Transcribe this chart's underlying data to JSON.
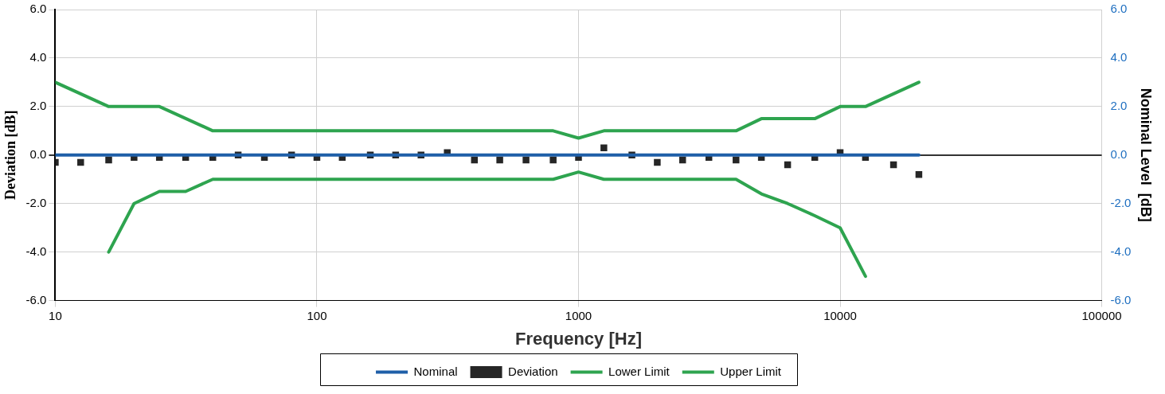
{
  "chart_data": {
    "type": "line",
    "xlabel": "Frequency [Hz]",
    "ylabel": "Deviation [dB]",
    "y2label": "Nominal Level  [dB]",
    "log": "x",
    "grid": true,
    "legend": "bottom",
    "xlim": [
      10,
      100000
    ],
    "xticks": [
      10,
      100,
      1000,
      10000,
      100000
    ],
    "ylim": [
      -6,
      6
    ],
    "yticks": [
      {
        "value": -6,
        "label": "-6.0"
      },
      {
        "value": -4,
        "label": "-4.0"
      },
      {
        "value": -2,
        "label": "-2.0"
      },
      {
        "value": 0,
        "label": "0.0"
      },
      {
        "value": 2,
        "label": "2.0"
      },
      {
        "value": 4,
        "label": "4.0"
      },
      {
        "value": 6,
        "label": "6.0"
      }
    ],
    "y2lim": [
      -6,
      6
    ],
    "y2ticks": [
      {
        "value": -6,
        "label": "-6.0"
      },
      {
        "value": -4,
        "label": "-4.0"
      },
      {
        "value": -2,
        "label": "-2.0"
      },
      {
        "value": 0,
        "label": "0.0"
      },
      {
        "value": 2,
        "label": "2.0"
      },
      {
        "value": 4,
        "label": "4.0"
      },
      {
        "value": 6,
        "label": "6.0"
      }
    ],
    "series": [
      {
        "name": "Nominal",
        "color": "#1f5fa8",
        "marker": "none",
        "x": [
          10,
          20000
        ],
        "values": [
          0,
          0
        ]
      },
      {
        "name": "Deviation",
        "type": "scatter",
        "color": "#262626",
        "marker": "square",
        "x": [
          10,
          12.5,
          16,
          20,
          25,
          31.5,
          40,
          50,
          63,
          80,
          100,
          125,
          160,
          200,
          250,
          315,
          400,
          500,
          630,
          800,
          1000,
          1250,
          1600,
          2000,
          2500,
          3150,
          4000,
          5000,
          6300,
          8000,
          10000,
          12500,
          16000,
          20000
        ],
        "values": [
          -0.3,
          -0.3,
          -0.2,
          -0.1,
          -0.1,
          -0.1,
          -0.1,
          0,
          -0.1,
          0,
          -0.1,
          -0.1,
          0,
          0,
          0,
          0.1,
          -0.2,
          -0.2,
          -0.2,
          -0.2,
          -0.1,
          0.3,
          0,
          -0.3,
          -0.2,
          -0.1,
          -0.2,
          -0.1,
          -0.4,
          -0.1,
          0.1,
          -0.1,
          -0.4,
          -0.8
        ]
      },
      {
        "name": "Lower Limit",
        "color": "#2ea44f",
        "marker": "none",
        "x": [
          16,
          20,
          25,
          31.5,
          40,
          800,
          1000,
          1250,
          4000,
          5000,
          6300,
          8000,
          10000,
          12500
        ],
        "values": [
          -4,
          -2,
          -1.5,
          -1.5,
          -1,
          -1,
          -0.7,
          -1,
          -1,
          -1.6,
          -2,
          -2.5,
          -3,
          -5
        ]
      },
      {
        "name": "Upper Limit",
        "color": "#2ea44f",
        "marker": "none",
        "x": [
          10,
          16,
          25,
          40,
          800,
          1000,
          1250,
          4000,
          5000,
          8000,
          10000,
          12500,
          20000
        ],
        "values": [
          3,
          2,
          2,
          1,
          1,
          0.7,
          1,
          1,
          1.5,
          1.5,
          2,
          2,
          3
        ]
      }
    ]
  }
}
